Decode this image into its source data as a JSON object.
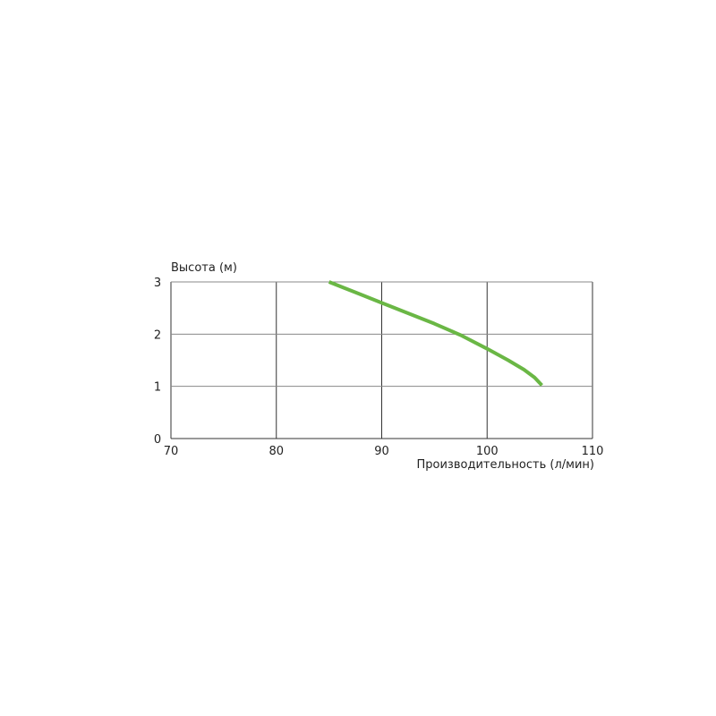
{
  "chart_data": {
    "type": "line",
    "title": "",
    "xlabel": "Производительность (л/мин)",
    "ylabel": "Высота (м)",
    "xlim": [
      70,
      110
    ],
    "ylim": [
      0,
      3
    ],
    "xticks": [
      "70",
      "80",
      "90",
      "100",
      "110"
    ],
    "yticks": [
      "0",
      "1",
      "2",
      "3"
    ],
    "grid": true,
    "series": [
      {
        "color": "#6ab745",
        "x": [
          85,
          87.5,
          90,
          92.5,
          95,
          97.5,
          100,
          102,
          103.5,
          104.5,
          105.2
        ],
        "y": [
          3.0,
          2.8,
          2.6,
          2.4,
          2.2,
          1.98,
          1.72,
          1.5,
          1.32,
          1.17,
          1.02
        ]
      }
    ]
  }
}
